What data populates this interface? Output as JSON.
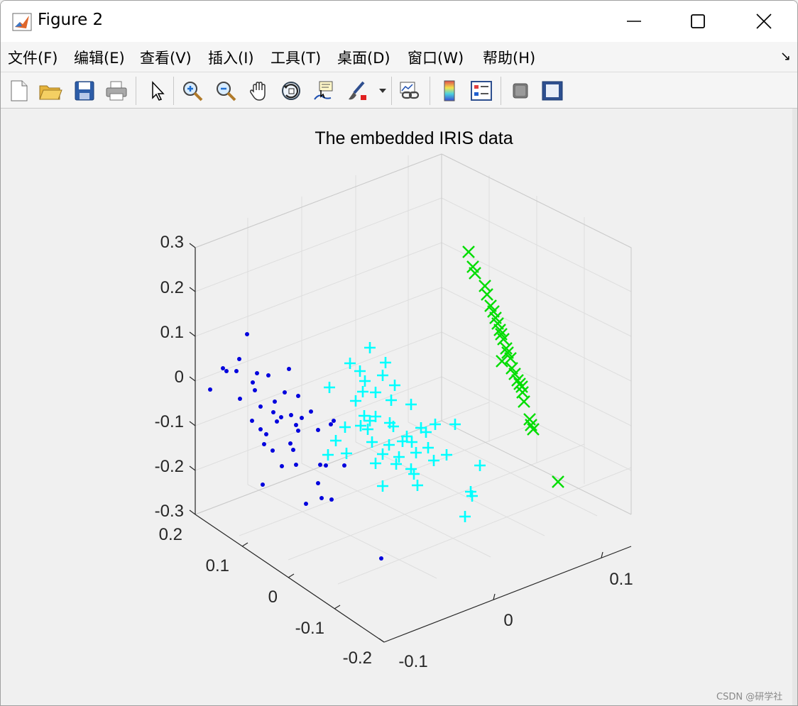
{
  "window": {
    "title": "Figure 2"
  },
  "menu": [
    {
      "label": "文件(F)",
      "name": "menu-file"
    },
    {
      "label": "编辑(E)",
      "name": "menu-edit"
    },
    {
      "label": "查看(V)",
      "name": "menu-view"
    },
    {
      "label": "插入(I)",
      "name": "menu-insert"
    },
    {
      "label": "工具(T)",
      "name": "menu-tools"
    },
    {
      "label": "桌面(D)",
      "name": "menu-desktop"
    },
    {
      "label": "窗口(W)",
      "name": "menu-window"
    },
    {
      "label": "帮助(H)",
      "name": "menu-help"
    }
  ],
  "toolbar": {
    "items": [
      "new-file-icon",
      "open-folder-icon",
      "save-icon",
      "print-icon",
      "pointer-icon",
      "zoom-in-icon",
      "zoom-out-icon",
      "pan-hand-icon",
      "rotate-3d-icon",
      "data-cursor-icon",
      "brush-icon",
      "brush-dropdown-icon",
      "link-plot-icon",
      "colorbar-icon",
      "legend-icon",
      "hide-plot-tools-icon",
      "show-plot-tools-icon"
    ]
  },
  "watermark": "CSDN @研学社",
  "colors": {
    "class1": "#0000dd",
    "class2": "#00ffff",
    "class3": "#00dd00"
  },
  "chart_data": {
    "type": "scatter",
    "title": "The embedded IRIS data",
    "z_ticks": [
      "0.3",
      "0.2",
      "0.1",
      "0",
      "-0.1",
      "-0.2",
      "-0.3"
    ],
    "y_ticks": [
      "0.2",
      "0.1",
      "0",
      "-0.1",
      "-0.2"
    ],
    "x_ticks": [
      "-0.1",
      "0",
      "0.1"
    ],
    "markers": [
      "dot",
      "plus",
      "x"
    ],
    "point_counts": [
      50,
      50,
      50
    ]
  }
}
